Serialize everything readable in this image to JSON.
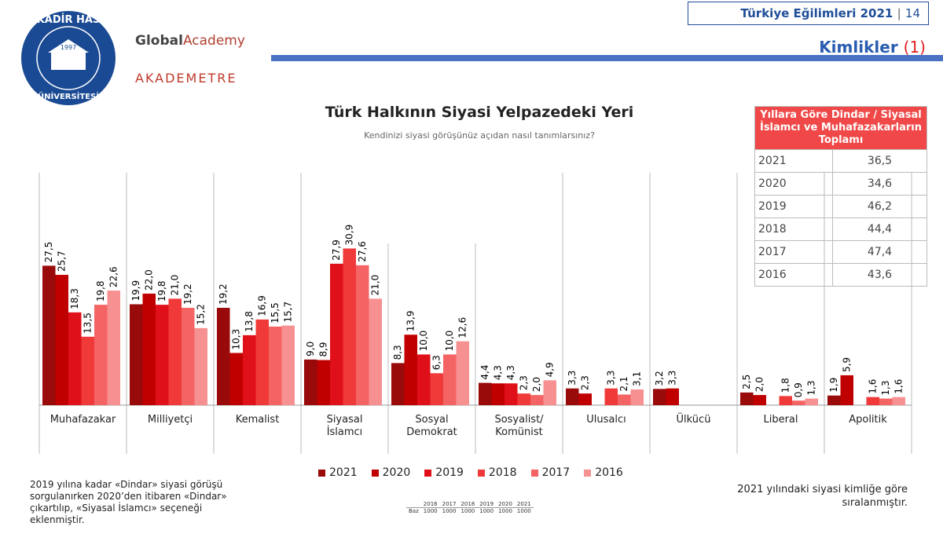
{
  "header": {
    "report": "Türkiye Eğilimleri 2021",
    "page": "14",
    "section": "Kimlikler",
    "section_number": "(1)"
  },
  "logos": {
    "university_top": "KADİR HAS",
    "university_year": "1997",
    "university_bottom": "ÜNİVERSİTESİ",
    "partner_bold": "Global",
    "partner_light": "Academy",
    "partner_two": "AKADEMETRE"
  },
  "chart_data": {
    "type": "bar",
    "title": "Türk Halkının Siyasi Yelpazedeki Yeri",
    "subtitle": "Kendinizi siyasi görüşünüz açıdan nasıl tanımlarsınız?",
    "categories": [
      "Muhafazakar",
      "Milliyetçi",
      "Kemalist",
      "Siyasal İslamcı",
      "Sosyal Demokrat",
      "Sosyalist/ Komünist",
      "Ulusalcı",
      "Ülkücü",
      "Liberal",
      "Apolitik"
    ],
    "ylim": [
      0,
      35
    ],
    "legend": "bottom",
    "series": [
      {
        "name": "2021",
        "color": "#990a0a",
        "values": [
          27.5,
          19.9,
          19.2,
          9.0,
          8.3,
          4.4,
          3.3,
          3.2,
          2.5,
          1.9
        ],
        "value_labels": [
          "27,5",
          "19,9",
          "19,2",
          "9,0",
          "8,3",
          "4,4",
          "3,3",
          "3,2",
          "2,5",
          "1,9"
        ]
      },
      {
        "name": "2020",
        "color": "#c00000",
        "values": [
          25.7,
          22.0,
          10.3,
          8.9,
          13.9,
          4.3,
          2.3,
          3.3,
          2.0,
          5.9
        ],
        "value_labels": [
          "25,7",
          "22,0",
          "10,3",
          "8,9",
          "13,9",
          "4,3",
          "2,3",
          "3,3",
          "2,0",
          "5,9"
        ]
      },
      {
        "name": "2019",
        "color": "#e0101a",
        "values": [
          18.3,
          19.8,
          13.8,
          27.9,
          10.0,
          4.3,
          null,
          null,
          null,
          null
        ],
        "value_labels": [
          "18,3",
          "19,8",
          "13,8",
          "27,9",
          "10,0",
          "4,3",
          null,
          null,
          null,
          null
        ]
      },
      {
        "name": "2018",
        "color": "#f03a3a",
        "values": [
          13.5,
          21.0,
          16.9,
          30.9,
          6.3,
          2.3,
          3.3,
          null,
          1.8,
          1.6
        ],
        "value_labels": [
          "13,5",
          "21,0",
          "16,9",
          "30,9",
          "6,3",
          "2,3",
          "3,3",
          null,
          "1,8",
          "1,6"
        ]
      },
      {
        "name": "2017",
        "color": "#f46464",
        "values": [
          19.8,
          19.2,
          15.5,
          27.6,
          10.0,
          2.0,
          2.1,
          null,
          0.9,
          1.3
        ],
        "value_labels": [
          "19,8",
          "19,2",
          "15,5",
          "27,6",
          "10,0",
          "2,0",
          "2,1",
          null,
          "0,9",
          "1,3"
        ]
      },
      {
        "name": "2016",
        "color": "#f79191",
        "values": [
          22.6,
          15.2,
          15.7,
          21.0,
          12.6,
          4.9,
          3.1,
          null,
          1.3,
          1.6
        ],
        "value_labels": [
          "22,6",
          "15,2",
          "15,7",
          "21,0",
          "12,6",
          "4,9",
          "3,1",
          null,
          "1,3",
          "1,6"
        ]
      }
    ]
  },
  "summary_table": {
    "title": "Yıllara Göre Dindar / Siyasal İslamcı ve Muhafazakarların Toplamı",
    "rows": [
      [
        "2021",
        "36,5"
      ],
      [
        "2020",
        "34,6"
      ],
      [
        "2019",
        "46,2"
      ],
      [
        "2018",
        "44,4"
      ],
      [
        "2017",
        "47,4"
      ],
      [
        "2016",
        "43,6"
      ]
    ]
  },
  "base_table": {
    "label": "Baz",
    "years": [
      "2016",
      "2017",
      "2018",
      "2019",
      "2020",
      "2021"
    ],
    "counts": [
      "1000",
      "1000",
      "1000",
      "1000",
      "1000",
      "1000"
    ]
  },
  "notes": {
    "left": "2019 yılına kadar «Dindar» siyasi görüşü sorgulanırken 2020’den itibaren «Dindar» çıkartılıp, «Siyasal İslamcı» seçeneği eklenmiştir.",
    "right": "2021 yılındaki siyasi kimliğe göre sıralanmıştır."
  }
}
